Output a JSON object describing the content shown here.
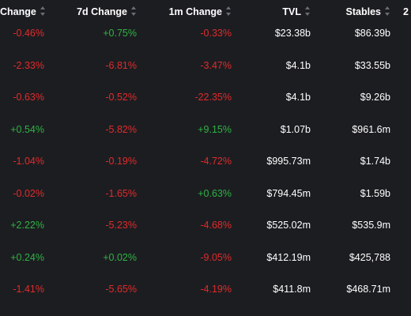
{
  "header": {
    "col_change": "Change",
    "col_7d": "7d Change",
    "col_1m": "1m Change",
    "col_tvl": "TVL",
    "col_stables": "Stables",
    "col_next": "2"
  },
  "rows": [
    {
      "change": "-0.46%",
      "change_7d": "+0.75%",
      "change_1m": "-0.33%",
      "tvl": "$23.38b",
      "stables": "$86.39b"
    },
    {
      "change": "-2.33%",
      "change_7d": "-6.81%",
      "change_1m": "-3.47%",
      "tvl": "$4.1b",
      "stables": "$33.55b"
    },
    {
      "change": "-0.63%",
      "change_7d": "-0.52%",
      "change_1m": "-22.35%",
      "tvl": "$4.1b",
      "stables": "$9.26b"
    },
    {
      "change": "+0.54%",
      "change_7d": "-5.82%",
      "change_1m": "+9.15%",
      "tvl": "$1.07b",
      "stables": "$961.6m"
    },
    {
      "change": "-1.04%",
      "change_7d": "-0.19%",
      "change_1m": "-4.72%",
      "tvl": "$995.73m",
      "stables": "$1.74b"
    },
    {
      "change": "-0.02%",
      "change_7d": "-1.65%",
      "change_1m": "+0.63%",
      "tvl": "$794.45m",
      "stables": "$1.59b"
    },
    {
      "change": "+2.22%",
      "change_7d": "-5.23%",
      "change_1m": "-4.68%",
      "tvl": "$525.02m",
      "stables": "$535.9m"
    },
    {
      "change": "+0.24%",
      "change_7d": "+0.02%",
      "change_1m": "-9.05%",
      "tvl": "$412.19m",
      "stables": "$425,788"
    },
    {
      "change": "-1.41%",
      "change_7d": "-5.65%",
      "change_1m": "-4.19%",
      "tvl": "$411.8m",
      "stables": "$468.71m"
    }
  ],
  "colors": {
    "background": "#1c1d21",
    "negative": "#e02b2b",
    "positive": "#2fb344",
    "text": "#ffffff",
    "sort_icon": "#6b6d75"
  }
}
